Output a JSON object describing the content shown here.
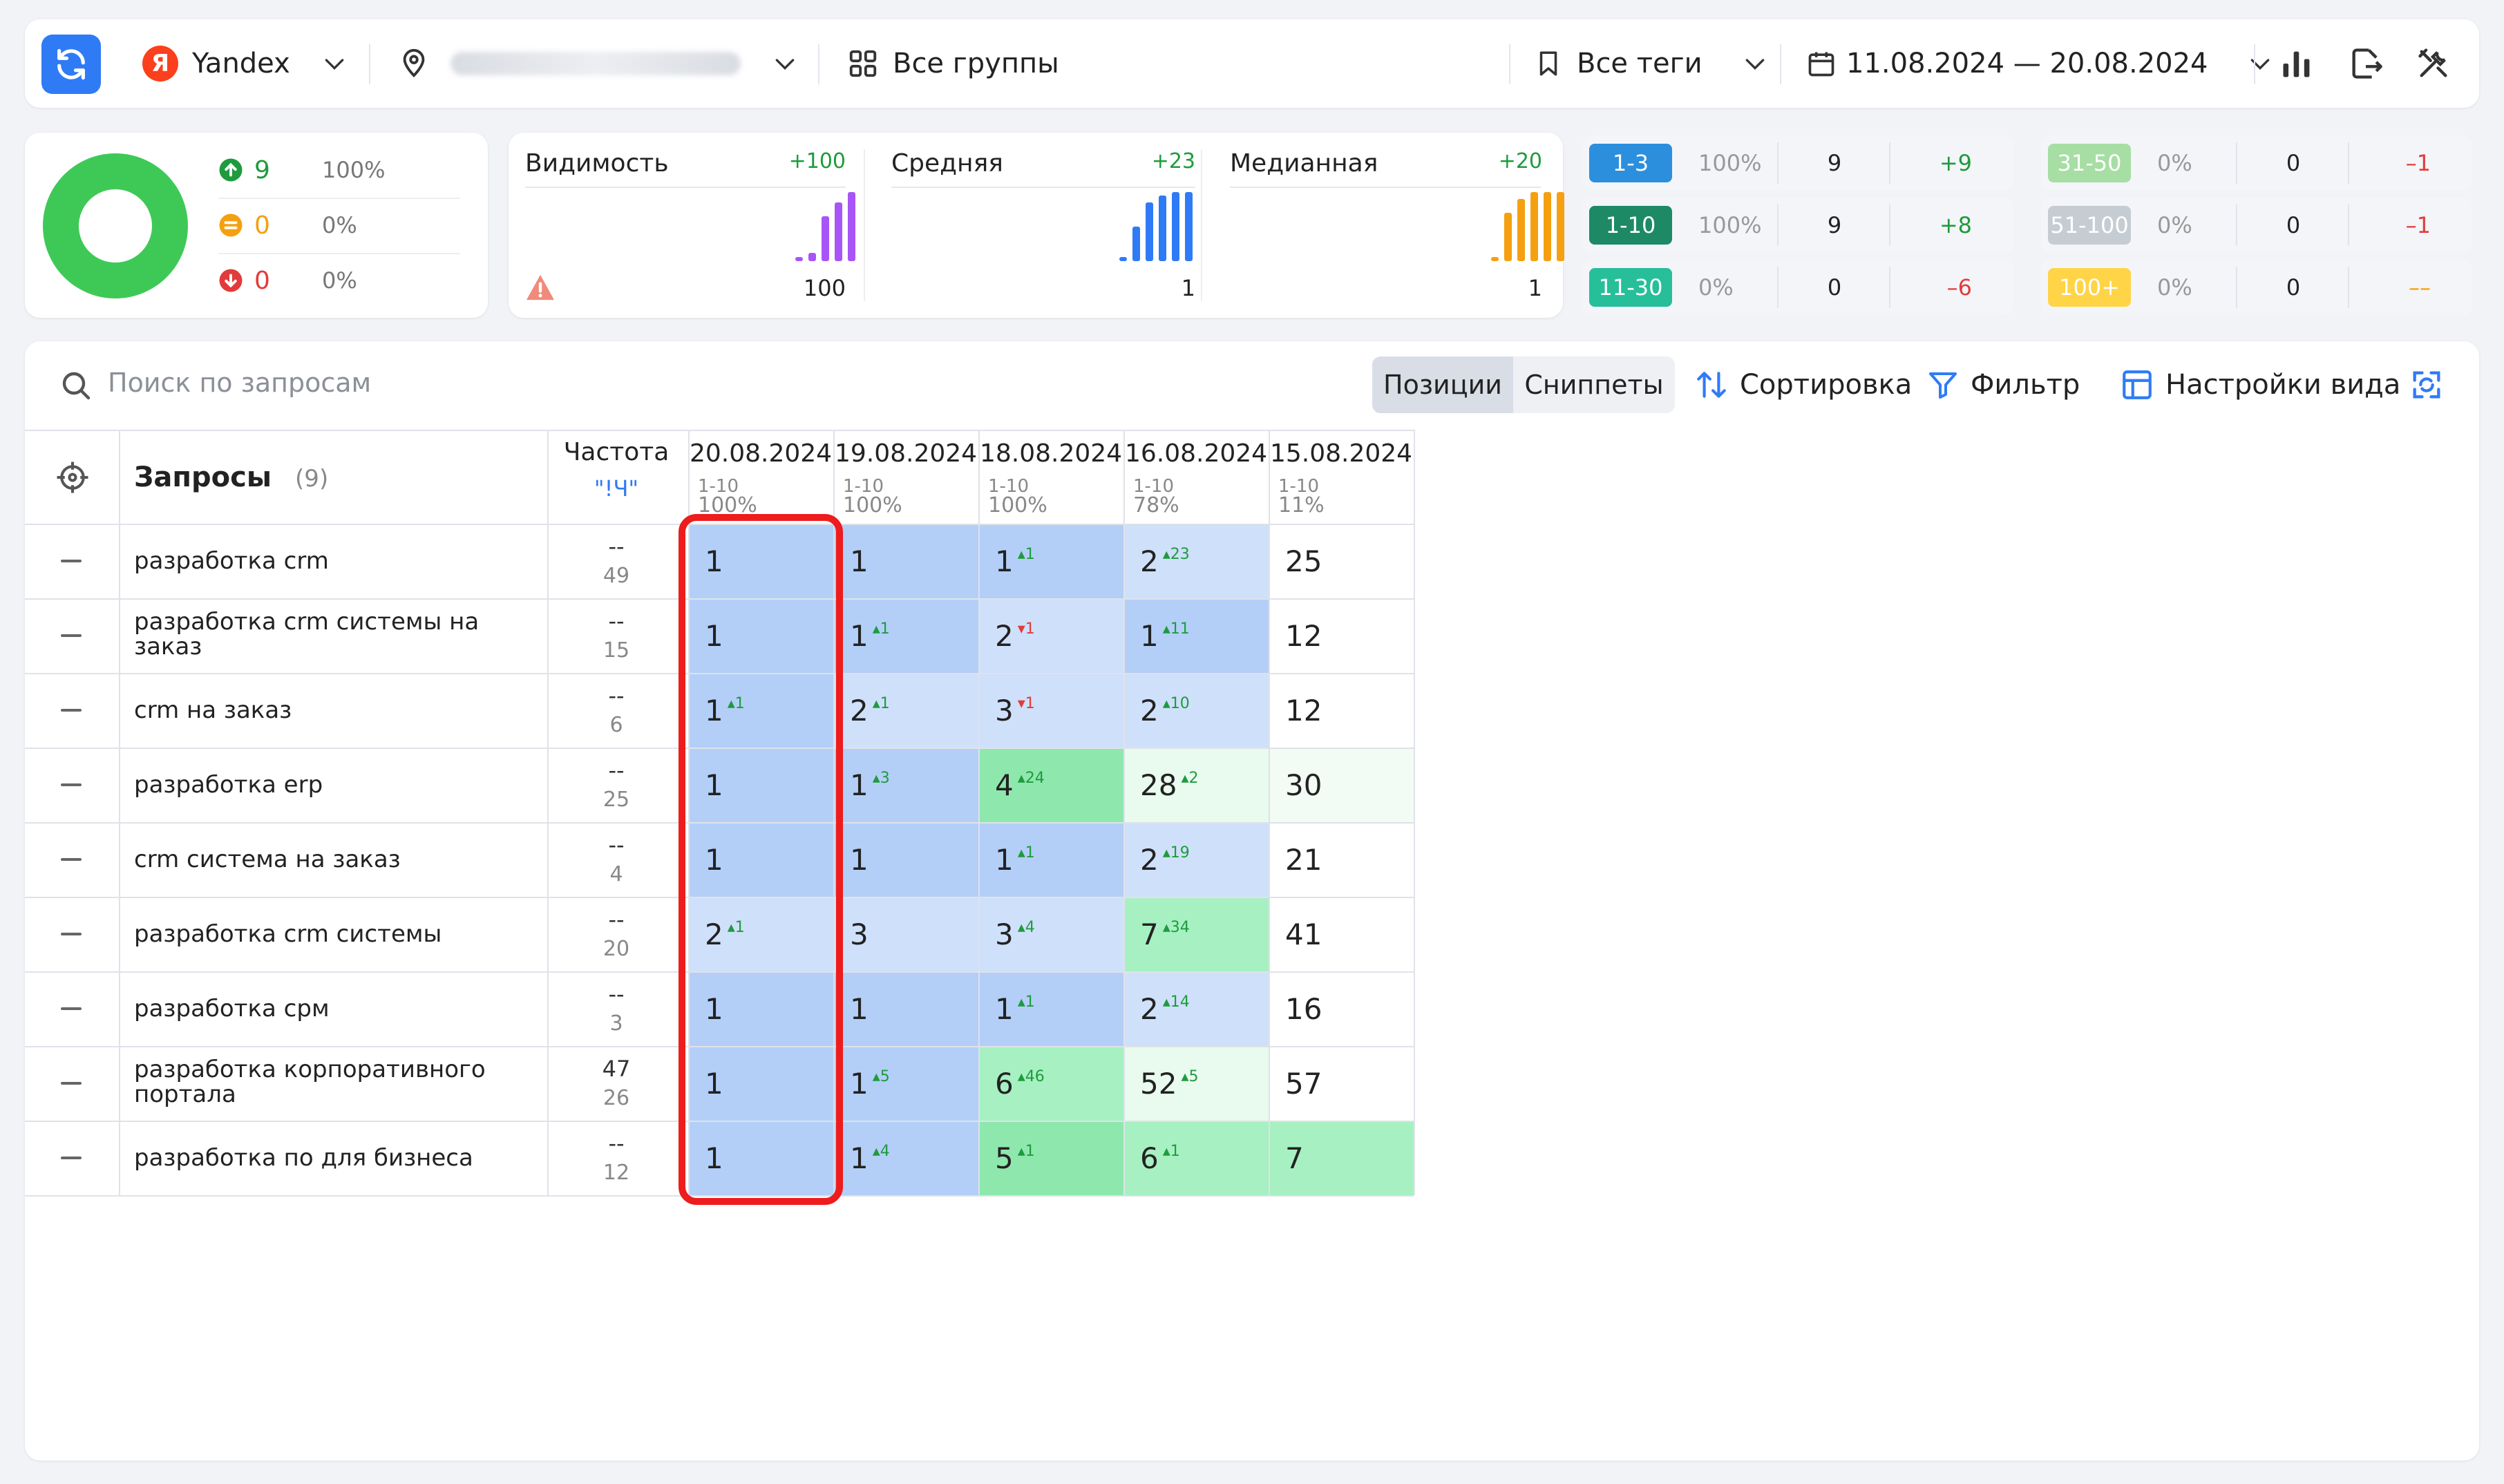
{
  "toolbar": {
    "engine": "Yandex",
    "engine_logo": "Я",
    "groups": "Все группы",
    "tags": "Все теги",
    "date_range": "11.08.2024 — 20.08.2024"
  },
  "summary": {
    "up": {
      "count": "9",
      "pct": "100%"
    },
    "same": {
      "count": "0",
      "pct": "0%"
    },
    "down": {
      "count": "0",
      "pct": "0%"
    }
  },
  "metrics": [
    {
      "label": "Видимость",
      "delta": "+100",
      "value": "100",
      "color": "#a855f7",
      "bars": [
        0.06,
        0.12,
        0.65,
        0.85,
        1.0
      ]
    },
    {
      "label": "Средняя",
      "delta": "+23",
      "value": "1",
      "color": "#2f7bf6",
      "bars": [
        0.06,
        0.5,
        0.85,
        0.95,
        1.0,
        1.0
      ]
    },
    {
      "label": "Медианная",
      "delta": "+20",
      "value": "1",
      "color": "#f5a010",
      "bars": [
        0.06,
        0.7,
        0.9,
        1.0,
        1.0,
        1.0
      ]
    }
  ],
  "ranges_left": [
    {
      "badge": "1-3",
      "color": "#2b8fdd",
      "pct": "100%",
      "num": "9",
      "delta": "+9",
      "dir": "up"
    },
    {
      "badge": "1-10",
      "color": "#1d8a65",
      "pct": "100%",
      "num": "9",
      "delta": "+8",
      "dir": "up"
    },
    {
      "badge": "11-30",
      "color": "#26bf9a",
      "pct": "0%",
      "num": "0",
      "delta": "–6",
      "dir": "down"
    }
  ],
  "ranges_right": [
    {
      "badge": "31-50",
      "color": "#a6dea4",
      "pct": "0%",
      "num": "0",
      "delta": "–1",
      "dir": "down"
    },
    {
      "badge": "51-100",
      "color": "#c5cdd2",
      "pct": "0%",
      "num": "0",
      "delta": "–1",
      "dir": "down"
    },
    {
      "badge": "100+",
      "color": "#ffd447",
      "pct": "0%",
      "num": "0",
      "delta": "––",
      "dir": "neutral"
    }
  ],
  "main": {
    "search_placeholder": "Поиск по запросам",
    "tab_positions": "Позиции",
    "tab_snippets": "Сниппеты",
    "sort": "Сортировка",
    "filter": "Фильтр",
    "view_settings": "Настройки вида"
  },
  "table": {
    "queries_title": "Запросы",
    "queries_count": "(9)",
    "freq_title": "Частота",
    "freq_sub": "\"!Ч\"",
    "dates": [
      {
        "date": "20.08.2024",
        "range": "1-10",
        "pct": "100%"
      },
      {
        "date": "19.08.2024",
        "range": "1-10",
        "pct": "100%"
      },
      {
        "date": "18.08.2024",
        "range": "1-10",
        "pct": "100%"
      },
      {
        "date": "16.08.2024",
        "range": "1-10",
        "pct": "78%"
      },
      {
        "date": "15.08.2024",
        "range": "1-10",
        "pct": "11%"
      }
    ],
    "rows": [
      {
        "query": "разработка crm",
        "freq1": "--",
        "freq2": "49",
        "cells": [
          {
            "v": "1",
            "d": "",
            "c": "#b3cff7"
          },
          {
            "v": "1",
            "d": "",
            "c": "#b3cff7"
          },
          {
            "v": "1",
            "d": "+1",
            "c": "#b3cff7"
          },
          {
            "v": "2",
            "d": "+23",
            "c": "#cfe0fa"
          },
          {
            "v": "25",
            "d": "",
            "c": "#ffffff"
          }
        ]
      },
      {
        "query": "разработка crm системы на заказ",
        "freq1": "--",
        "freq2": "15",
        "cells": [
          {
            "v": "1",
            "d": "",
            "c": "#b3cff7"
          },
          {
            "v": "1",
            "d": "+1",
            "c": "#b3cff7"
          },
          {
            "v": "2",
            "d": "-1",
            "c": "#cfe0fa"
          },
          {
            "v": "1",
            "d": "+11",
            "c": "#b3cff7"
          },
          {
            "v": "12",
            "d": "",
            "c": "#ffffff"
          }
        ]
      },
      {
        "query": "crm на заказ",
        "freq1": "--",
        "freq2": "6",
        "cells": [
          {
            "v": "1",
            "d": "+1",
            "c": "#b3cff7"
          },
          {
            "v": "2",
            "d": "+1",
            "c": "#cfe0fa"
          },
          {
            "v": "3",
            "d": "-1",
            "c": "#cfe0fa"
          },
          {
            "v": "2",
            "d": "+10",
            "c": "#cfe0fa"
          },
          {
            "v": "12",
            "d": "",
            "c": "#ffffff"
          }
        ]
      },
      {
        "query": "разработка erp",
        "freq1": "--",
        "freq2": "25",
        "cells": [
          {
            "v": "1",
            "d": "",
            "c": "#b3cff7"
          },
          {
            "v": "1",
            "d": "+3",
            "c": "#b3cff7"
          },
          {
            "v": "4",
            "d": "+24",
            "c": "#8ee8ad"
          },
          {
            "v": "28",
            "d": "+2",
            "c": "#e9fbef"
          },
          {
            "v": "30",
            "d": "",
            "c": "#f2fcf5"
          }
        ]
      },
      {
        "query": "crm система на заказ",
        "freq1": "--",
        "freq2": "4",
        "cells": [
          {
            "v": "1",
            "d": "",
            "c": "#b3cff7"
          },
          {
            "v": "1",
            "d": "",
            "c": "#b3cff7"
          },
          {
            "v": "1",
            "d": "+1",
            "c": "#b3cff7"
          },
          {
            "v": "2",
            "d": "+19",
            "c": "#cfe0fa"
          },
          {
            "v": "21",
            "d": "",
            "c": "#ffffff"
          }
        ]
      },
      {
        "query": "разработка crm системы",
        "freq1": "--",
        "freq2": "20",
        "cells": [
          {
            "v": "2",
            "d": "+1",
            "c": "#cfe0fa"
          },
          {
            "v": "3",
            "d": "",
            "c": "#cfe0fa"
          },
          {
            "v": "3",
            "d": "+4",
            "c": "#cfe0fa"
          },
          {
            "v": "7",
            "d": "+34",
            "c": "#a7f0c2"
          },
          {
            "v": "41",
            "d": "",
            "c": "#ffffff"
          }
        ]
      },
      {
        "query": "разработка срм",
        "freq1": "--",
        "freq2": "3",
        "cells": [
          {
            "v": "1",
            "d": "",
            "c": "#b3cff7"
          },
          {
            "v": "1",
            "d": "",
            "c": "#b3cff7"
          },
          {
            "v": "1",
            "d": "+1",
            "c": "#b3cff7"
          },
          {
            "v": "2",
            "d": "+14",
            "c": "#cfe0fa"
          },
          {
            "v": "16",
            "d": "",
            "c": "#ffffff"
          }
        ]
      },
      {
        "query": "разработка корпоративного портала",
        "freq1": "47",
        "freq2": "26",
        "cells": [
          {
            "v": "1",
            "d": "",
            "c": "#b3cff7"
          },
          {
            "v": "1",
            "d": "+5",
            "c": "#b3cff7"
          },
          {
            "v": "6",
            "d": "+46",
            "c": "#a7f0c2"
          },
          {
            "v": "52",
            "d": "+5",
            "c": "#e9fbef"
          },
          {
            "v": "57",
            "d": "",
            "c": "#ffffff"
          }
        ]
      },
      {
        "query": "разработка по для бизнеса",
        "freq1": "--",
        "freq2": "12",
        "cells": [
          {
            "v": "1",
            "d": "",
            "c": "#b3cff7"
          },
          {
            "v": "1",
            "d": "+4",
            "c": "#b3cff7"
          },
          {
            "v": "5",
            "d": "+1",
            "c": "#8ee8ad"
          },
          {
            "v": "6",
            "d": "+1",
            "c": "#a7f0c2"
          },
          {
            "v": "7",
            "d": "",
            "c": "#a7f0c2"
          }
        ]
      }
    ]
  }
}
